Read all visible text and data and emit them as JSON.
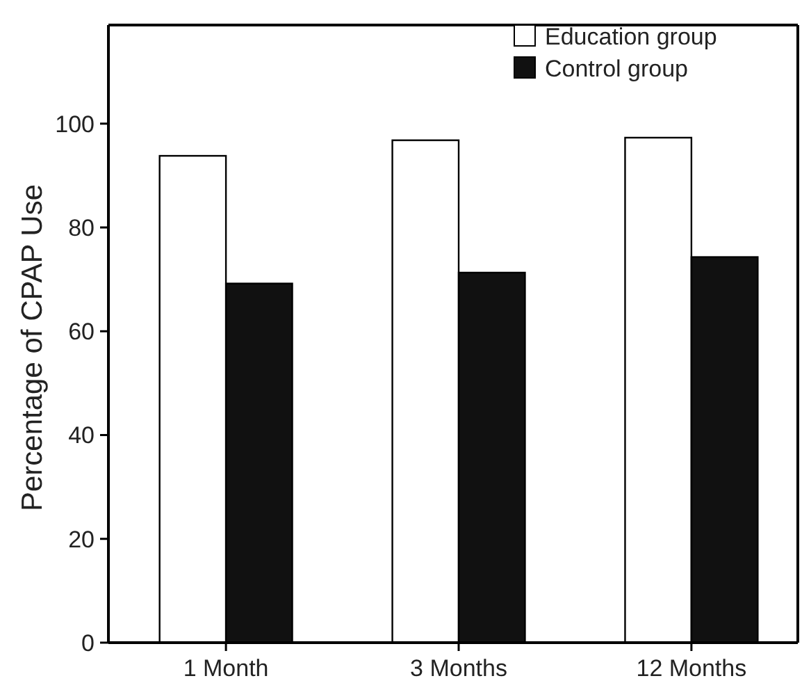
{
  "chart_data": {
    "type": "bar",
    "ylabel": "Percentage of CPAP Use",
    "categories": [
      "1 Month",
      "3 Months",
      "12 Months"
    ],
    "series": [
      {
        "name": "Education group",
        "color": "#ffffff",
        "values": [
          93.8,
          96.8,
          97.3
        ]
      },
      {
        "name": "Control group",
        "color": "#111111",
        "values": [
          69.2,
          71.3,
          74.3
        ]
      }
    ],
    "ylim": [
      0,
      119
    ],
    "yticks": [
      0,
      20,
      40,
      60,
      80,
      100
    ],
    "legend": "top right"
  }
}
